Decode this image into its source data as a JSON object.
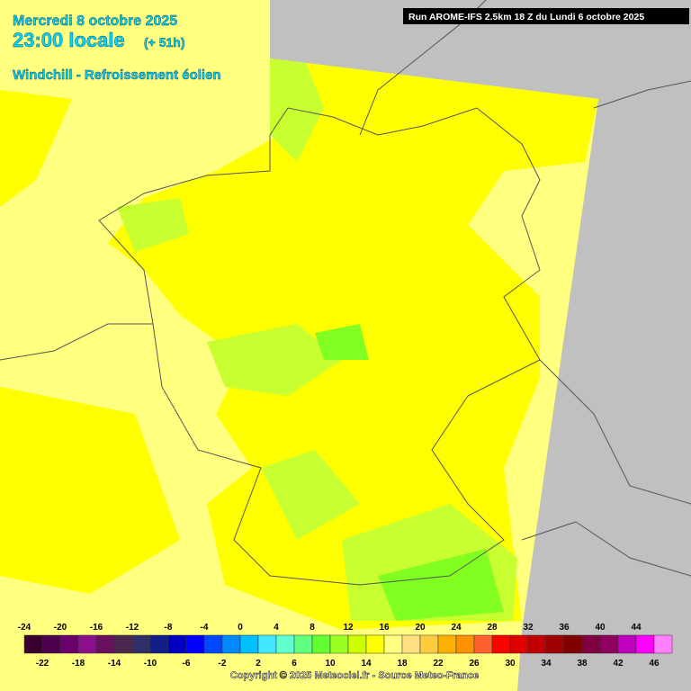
{
  "header": {
    "date": "Mercredi 8 octobre 2025",
    "time": "23:00 locale",
    "lead": "(+ 51h)",
    "parameter": "Windchill - Refroissement éolien",
    "run": "Run AROME-IFS 2.5km 18 Z du Lundi 6 octobre 2025"
  },
  "legend": {
    "ticks": [
      -24,
      -22,
      -20,
      -18,
      -16,
      -14,
      -12,
      -10,
      -8,
      -6,
      -4,
      -2,
      0,
      2,
      4,
      6,
      8,
      10,
      12,
      14,
      16,
      18,
      20,
      22,
      24,
      26,
      28,
      30,
      32,
      34,
      36,
      38,
      40,
      42,
      44,
      46
    ],
    "colors": [
      "#3a0030",
      "#4c004c",
      "#6a006a",
      "#8c108c",
      "#6a1060",
      "#4a2850",
      "#303068",
      "#102088",
      "#0000c0",
      "#0000ff",
      "#0048ff",
      "#0088ff",
      "#00c0ff",
      "#40e8ff",
      "#60ffd0",
      "#60ff80",
      "#60ff30",
      "#98ff20",
      "#ccff00",
      "#ffff00",
      "#ffff80",
      "#ffe080",
      "#ffcc40",
      "#ffb000",
      "#ff9000",
      "#ff6030",
      "#ff0000",
      "#e00000",
      "#c00000",
      "#a00000",
      "#800000",
      "#800040",
      "#900060",
      "#c000c0",
      "#ff00ff",
      "#ff80ff"
    ]
  },
  "footer": {
    "copyright": "Copyright © 2025 Meteociel.fr - Source Meteo-France"
  }
}
